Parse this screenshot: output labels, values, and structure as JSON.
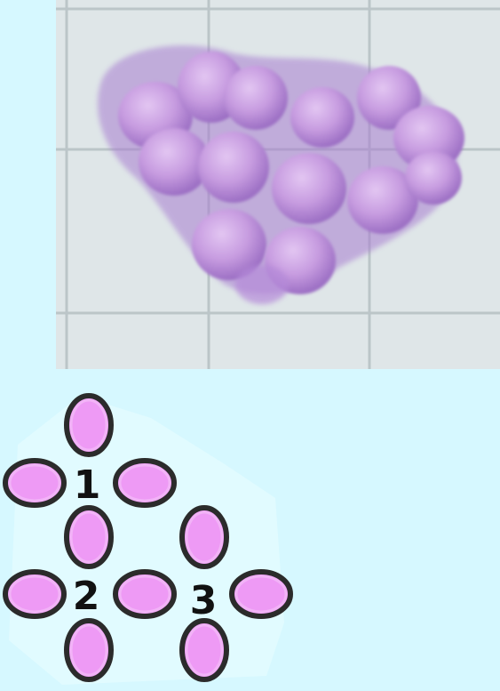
{
  "colors": {
    "page_background": "#d6f8ff",
    "paper": "#dfe6e8",
    "grid_line": "#b8c2c5",
    "bead_photo": "#c79ce0",
    "bead_diagram_fill": "#ee9af5",
    "bead_outline": "#2b2b2b",
    "label_color": "#111111"
  },
  "photo": {
    "description_icon": "beaded-cluster-photo"
  },
  "diagram": {
    "labels": [
      "1",
      "2",
      "3"
    ]
  }
}
